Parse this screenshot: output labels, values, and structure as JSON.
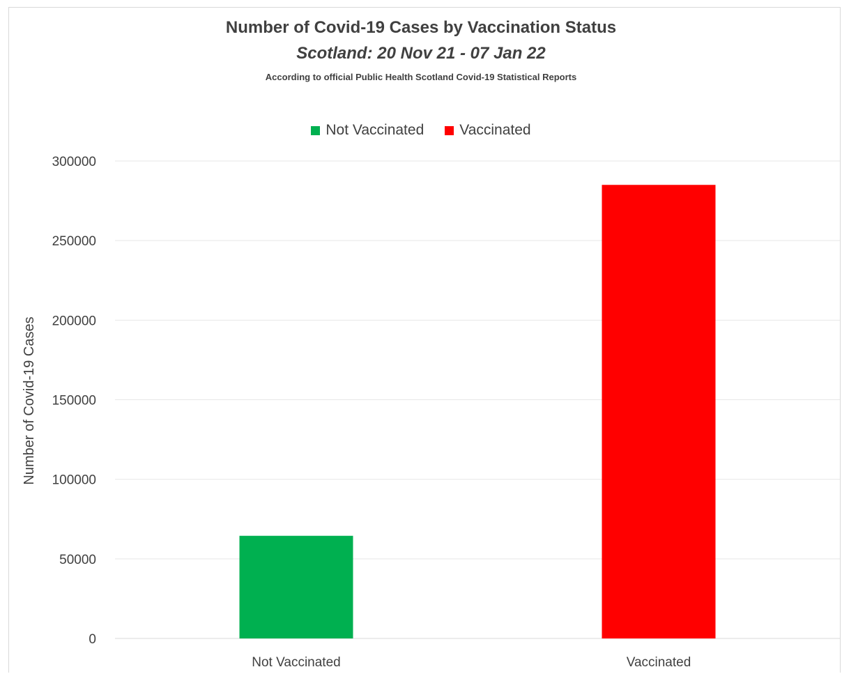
{
  "chart_data": {
    "type": "bar",
    "title": "Number of Covid-19 Cases by Vaccination Status",
    "subtitle": "Scotland: 20 Nov 21 - 07 Jan 22",
    "note": "According to official Public Health Scotland Covid-19 Statistical Reports",
    "categories": [
      "Not Vaccinated",
      "Vaccinated"
    ],
    "values": [
      64500,
      285000
    ],
    "colors": [
      "#00b050",
      "#ff0000"
    ],
    "legend": [
      {
        "label": "Not Vaccinated",
        "color": "#00b050"
      },
      {
        "label": "Vaccinated",
        "color": "#ff0000"
      }
    ],
    "legend_position": "top",
    "xlabel": "",
    "ylabel": "Number of Covid-19 Cases",
    "ylim": [
      0,
      300000
    ],
    "yticks": [
      "0",
      "50000",
      "100000",
      "150000",
      "200000",
      "250000",
      "300000"
    ],
    "grid": true
  }
}
